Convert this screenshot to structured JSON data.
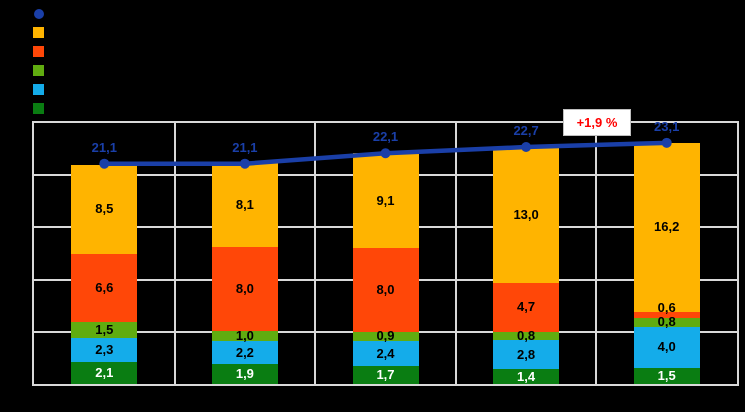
{
  "page": {
    "background": "#000000",
    "note_colors": {
      "grid": "#D9D9D9"
    }
  },
  "legend": {
    "position": "top-left",
    "items": [
      {
        "name": "total-line",
        "marker": "circle",
        "color": "#1A3FA8"
      },
      {
        "name": "series-amber",
        "marker": "square",
        "color": "#FFB400"
      },
      {
        "name": "series-orangered",
        "marker": "square",
        "color": "#FF4708"
      },
      {
        "name": "series-green",
        "marker": "square",
        "color": "#60AC10"
      },
      {
        "name": "series-lightblue",
        "marker": "square",
        "color": "#14ACEA"
      },
      {
        "name": "series-darkgreen",
        "marker": "square",
        "color": "#0A7D12"
      }
    ]
  },
  "chart_data": {
    "type": "bar",
    "subtype": "stacked-columns-with-total-line",
    "categories": [
      "",
      "",
      "",
      "",
      ""
    ],
    "ylim": [
      0,
      25
    ],
    "grid_step": 5,
    "grid": true,
    "legend_position": "top-left",
    "series": [
      {
        "name": "darkgreen",
        "color": "#0A7D12",
        "label_color": "#FFFFFF",
        "values": [
          2.1,
          1.9,
          1.7,
          1.4,
          1.5
        ],
        "labels": [
          "2,1",
          "1,9",
          "1,7",
          "1,4",
          "1,5"
        ]
      },
      {
        "name": "lightblue",
        "color": "#14ACEA",
        "label_color": "#000000",
        "values": [
          2.3,
          2.2,
          2.4,
          2.8,
          4.0
        ],
        "labels": [
          "2,3",
          "2,2",
          "2,4",
          "2,8",
          "4,0"
        ]
      },
      {
        "name": "green",
        "color": "#60AC10",
        "label_color": "#000000",
        "values": [
          1.5,
          1.0,
          0.9,
          0.8,
          0.8
        ],
        "labels": [
          "1,5",
          "1,0",
          "0,9",
          "0,8",
          "0,8"
        ]
      },
      {
        "name": "orangered",
        "color": "#FF4708",
        "label_color": "#000000",
        "values": [
          6.6,
          8.0,
          8.0,
          4.7,
          0.6
        ],
        "labels": [
          "6,6",
          "8,0",
          "8,0",
          "4,7",
          "0,6"
        ]
      },
      {
        "name": "amber",
        "color": "#FFB400",
        "label_color": "#000000",
        "values": [
          8.5,
          8.1,
          9.1,
          13.0,
          16.2
        ],
        "labels": [
          "8,5",
          "8,1",
          "9,1",
          "13,0",
          "16,2"
        ]
      }
    ],
    "line": {
      "name": "total",
      "color": "#1A3FA8",
      "values": [
        21.1,
        21.1,
        22.1,
        22.7,
        23.1
      ],
      "labels": [
        "21,1",
        "21,1",
        "22,1",
        "22,7",
        "23,1"
      ]
    },
    "annotation": {
      "text": "+1,9 %",
      "color": "#FF0000",
      "background": "#FFFFFF",
      "border": "#BFBFBF"
    }
  }
}
